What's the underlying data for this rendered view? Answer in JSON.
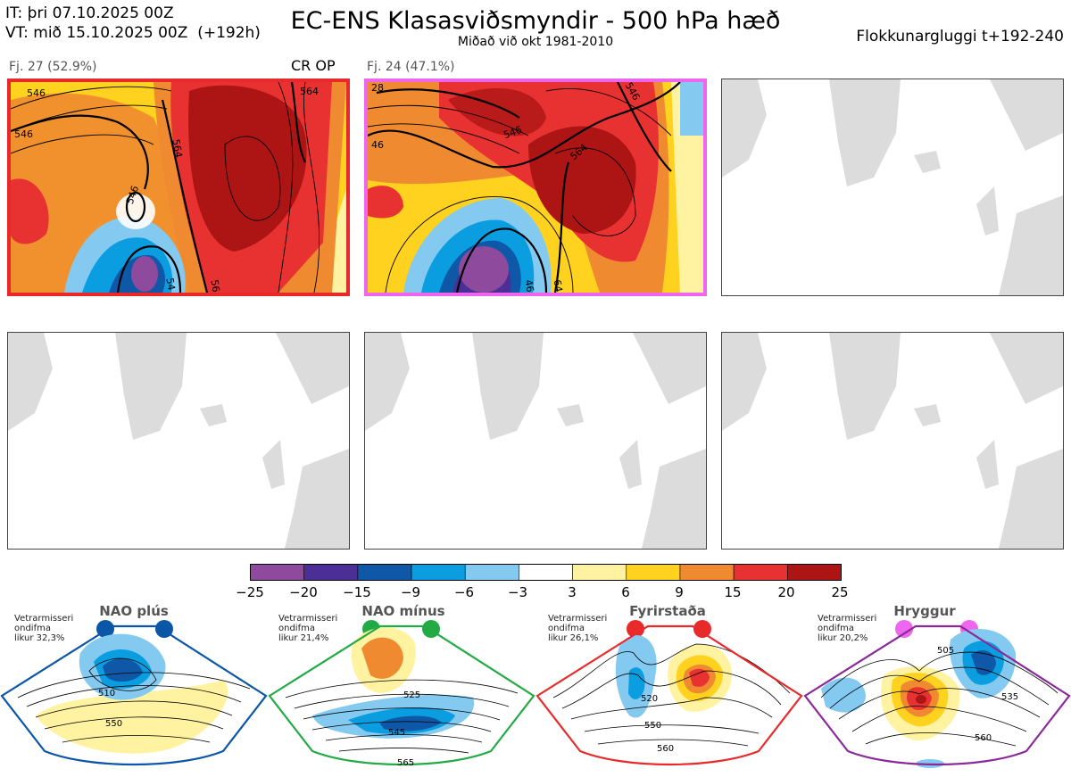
{
  "header": {
    "init_line": "IT: þri 07.10.2025 00Z",
    "valid_line": "VT: mið 15.10.2025 00Z  (+192h)",
    "title": "EC-ENS Klasasviðsmyndir - 500 hPa hæð",
    "subtitle": "Miðað við okt 1981-2010",
    "window": "Flokkunargluggi t+192-240"
  },
  "clusters": [
    {
      "label": "Fj. 27 (52.9%)",
      "tag": "CR OP",
      "border_color": "#e8282b"
    },
    {
      "label": "Fj. 24 (47.1%)",
      "tag": "",
      "border_color": "#ee66ee"
    }
  ],
  "contour_labels": {
    "cluster1": [
      "546",
      "546",
      "564",
      "546",
      "564",
      "54",
      "56"
    ],
    "cluster2": [
      "28",
      "46",
      "546",
      "564",
      "46",
      "64",
      "546"
    ]
  },
  "colorbar": {
    "colors": [
      "#8e4a9c",
      "#4b2f96",
      "#0f58a8",
      "#0a9ee0",
      "#84c9f0",
      "#ffffff",
      "#fff2a0",
      "#ffd21f",
      "#f08a30",
      "#e83232",
      "#ad1414"
    ],
    "ticks": [
      "−25",
      "−20",
      "−15",
      "−9",
      "−6",
      "−3",
      "3",
      "6",
      "9",
      "15",
      "20",
      "25"
    ]
  },
  "regimes": [
    {
      "name": "NAO plús",
      "stats": [
        "Vetrarmisseri",
        "ondifma",
        "likur 32,3%"
      ],
      "dot_color": "#0b56a6",
      "frame_color": "#0b56a6",
      "contours": [
        "510",
        "550"
      ]
    },
    {
      "name": "NAO mínus",
      "stats": [
        "Vetrarmisseri",
        "ondifma",
        "likur 21,4%"
      ],
      "dot_color": "#22aa44",
      "frame_color": "#22aa44",
      "contours": [
        "525",
        "545",
        "565"
      ]
    },
    {
      "name": "Fyrirstaða",
      "stats": [
        "Vetrarmisseri",
        "ondifma",
        "likur 26,1%"
      ],
      "dot_color": "#e82a2a",
      "frame_color": "#e82a2a",
      "contours": [
        "520",
        "550",
        "560"
      ]
    },
    {
      "name": "Hryggur",
      "stats": [
        "Vetrarmisseri",
        "ondifma",
        "likur 20,2%"
      ],
      "dot_color": "#ee66ee",
      "frame_color": "#8a2a9a",
      "contours": [
        "505",
        "535",
        "560"
      ]
    }
  ]
}
